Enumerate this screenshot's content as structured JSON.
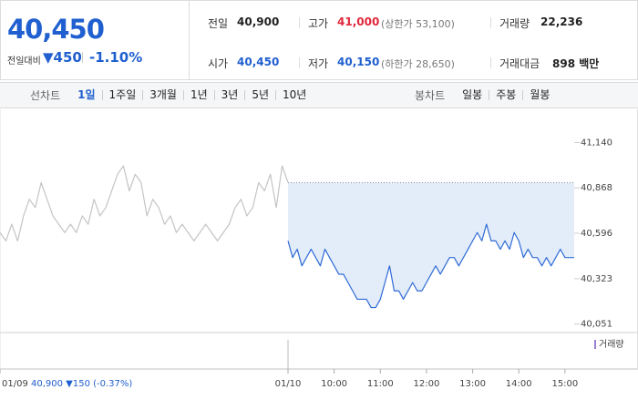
{
  "quote": {
    "price": "40,450",
    "change_label": "전일대비",
    "change": "▼450",
    "change_rate": "-1.10%"
  },
  "stats": [
    {
      "label": "전일",
      "value": "40,900"
    },
    {
      "label": "고가",
      "value": "41,000",
      "note": "(상한가 53,100)"
    },
    {
      "label": "거래량",
      "value": "22,236"
    },
    {
      "label": "시가",
      "value": "40,450"
    },
    {
      "label": "저가",
      "value": "40,150",
      "note": "(하한가 28,650)"
    },
    {
      "label": "거래대금",
      "value": "898 백만"
    }
  ],
  "tabs": {
    "line_label": "선차트",
    "line": [
      "1일",
      "1주일",
      "3개월",
      "1년",
      "3년",
      "5년",
      "10년"
    ],
    "candle_label": "봉차트",
    "candle": [
      "일봉",
      "주봉",
      "월봉"
    ]
  },
  "chart_data": {
    "type": "line",
    "ylim": [
      40000,
      41230
    ],
    "yticks": [
      {
        "value": 41140,
        "label": "41,140"
      },
      {
        "value": 40868,
        "label": "40,868"
      },
      {
        "value": 40596,
        "label": "40,596"
      },
      {
        "value": 40323,
        "label": "40,323"
      },
      {
        "value": 40051,
        "label": "40,051"
      }
    ],
    "reference": 40900,
    "volume_label": "거래량",
    "previous_day": {
      "color": "#c4c4c4",
      "xlim": [
        0,
        392
      ],
      "xticks": [
        {
          "value": 0,
          "label": "01/09"
        }
      ],
      "summary": "40,900 ▼150 (-0.37%)",
      "x": [
        0,
        8,
        16,
        24,
        32,
        40,
        48,
        56,
        64,
        72,
        80,
        88,
        96,
        104,
        112,
        120,
        128,
        136,
        144,
        152,
        160,
        168,
        176,
        184,
        192,
        200,
        208,
        216,
        224,
        232,
        240,
        248,
        256,
        264,
        272,
        280,
        288,
        296,
        304,
        312,
        320,
        328,
        336,
        344,
        352,
        360,
        368,
        376,
        384,
        392
      ],
      "values": [
        40600,
        40550,
        40650,
        40550,
        40700,
        40800,
        40750,
        40900,
        40800,
        40700,
        40650,
        40600,
        40650,
        40600,
        40700,
        40650,
        40800,
        40700,
        40750,
        40850,
        40950,
        41000,
        40850,
        40950,
        40900,
        40700,
        40800,
        40750,
        40650,
        40700,
        40600,
        40650,
        40600,
        40550,
        40600,
        40650,
        40600,
        40550,
        40600,
        40650,
        40750,
        40800,
        40700,
        40750,
        40900,
        40850,
        40950,
        40750,
        41000,
        40900
      ]
    },
    "today": {
      "color": "#2f6bd6",
      "area_color": "#e3ecf9",
      "xlim": [
        0,
        372
      ],
      "xticks": [
        {
          "value": 0,
          "label": "01/10"
        },
        {
          "value": 60,
          "label": "10:00"
        },
        {
          "value": 120,
          "label": "11:00"
        },
        {
          "value": 180,
          "label": "12:00"
        },
        {
          "value": 240,
          "label": "13:00"
        },
        {
          "value": 300,
          "label": "14:00"
        },
        {
          "value": 360,
          "label": "15:00"
        }
      ],
      "x": [
        0,
        6,
        12,
        18,
        24,
        30,
        36,
        42,
        48,
        54,
        60,
        66,
        72,
        78,
        84,
        90,
        96,
        102,
        108,
        114,
        120,
        126,
        132,
        138,
        144,
        150,
        156,
        162,
        168,
        174,
        180,
        186,
        192,
        198,
        204,
        210,
        216,
        222,
        228,
        234,
        240,
        246,
        252,
        258,
        264,
        270,
        276,
        282,
        288,
        294,
        300,
        306,
        312,
        318,
        324,
        330,
        336,
        342,
        348,
        354,
        360,
        366,
        372
      ],
      "values": [
        40550,
        40450,
        40500,
        40400,
        40450,
        40500,
        40450,
        40400,
        40500,
        40450,
        40400,
        40350,
        40350,
        40300,
        40250,
        40200,
        40200,
        40200,
        40150,
        40150,
        40200,
        40300,
        40400,
        40250,
        40250,
        40200,
        40250,
        40300,
        40250,
        40250,
        40300,
        40350,
        40400,
        40350,
        40400,
        40450,
        40450,
        40400,
        40450,
        40500,
        40550,
        40600,
        40550,
        40650,
        40550,
        40550,
        40500,
        40550,
        40500,
        40600,
        40550,
        40450,
        40500,
        40450,
        40450,
        40400,
        40450,
        40400,
        40450,
        40500,
        40450,
        40450,
        40450
      ]
    }
  }
}
